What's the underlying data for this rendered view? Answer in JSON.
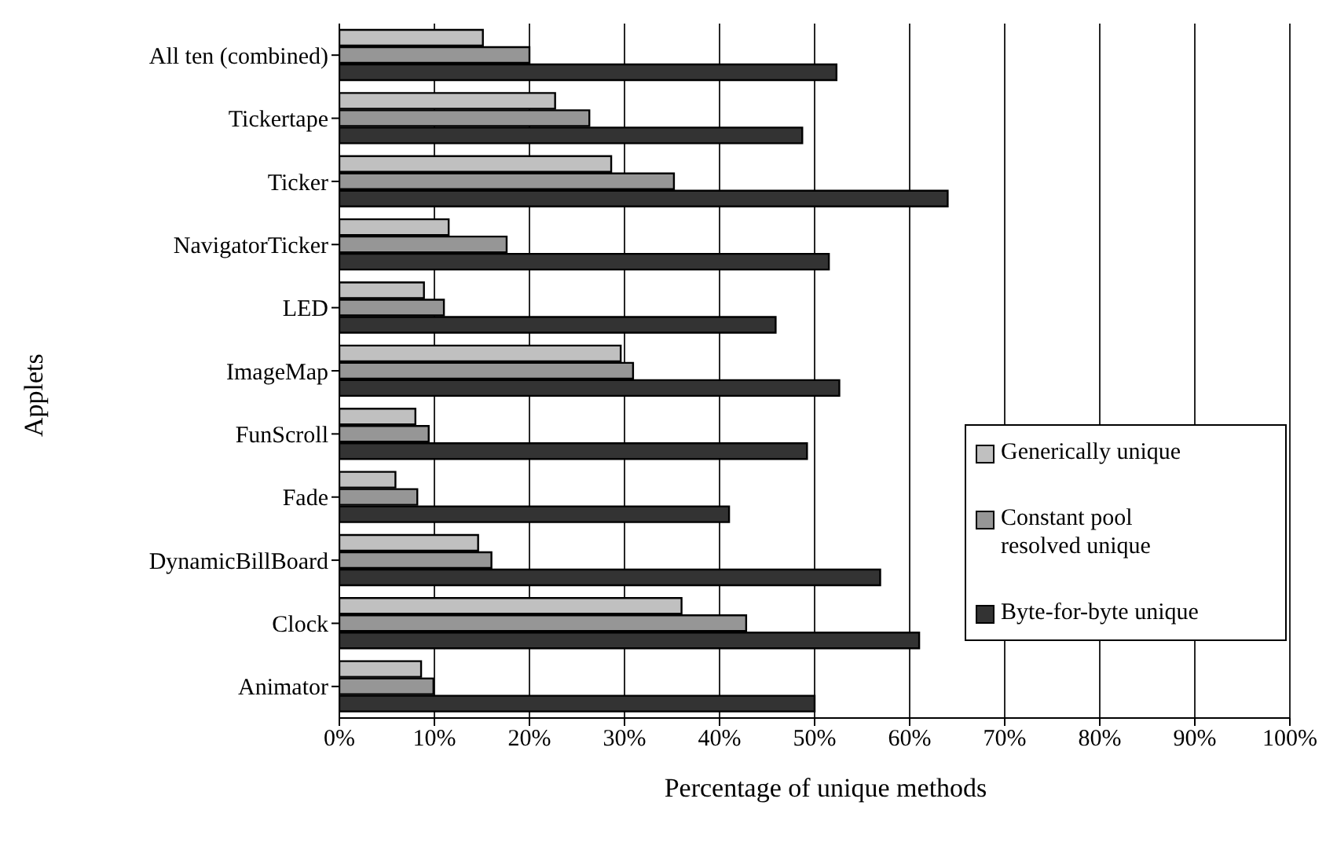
{
  "chart_data": {
    "type": "bar",
    "orientation": "horizontal",
    "xlabel": "Percentage of unique methods",
    "ylabel": "Applets",
    "categories": [
      "All ten (combined)",
      "Tickertape",
      "Ticker",
      "NavigatorTicker",
      "LED",
      "ImageMap",
      "FunScroll",
      "Fade",
      "DynamicBillBoard",
      "Clock",
      "Animator"
    ],
    "series": [
      {
        "name": "Generically unique",
        "color": "#c0c0c0",
        "values": [
          15.1,
          22.7,
          28.6,
          11.5,
          8.9,
          29.6,
          8,
          5.9,
          14.6,
          36,
          8.6
        ]
      },
      {
        "name": "Constant pool resolved unique",
        "color": "#969696",
        "values": [
          20,
          26.3,
          35.2,
          17.6,
          11,
          30.9,
          9.4,
          8.2,
          16,
          42.8,
          9.9
        ]
      },
      {
        "name": "Byte-for-byte unique",
        "color": "#333333",
        "values": [
          52.3,
          48.7,
          64,
          51.5,
          45.9,
          52.6,
          49.2,
          41,
          56.9,
          61,
          50
        ]
      }
    ],
    "xlim": [
      0,
      100
    ],
    "xticks": [
      {
        "value": 0,
        "label": "0%"
      },
      {
        "value": 10,
        "label": "10%"
      },
      {
        "value": 20,
        "label": "20%"
      },
      {
        "value": 30,
        "label": "30%"
      },
      {
        "value": 40,
        "label": "40%"
      },
      {
        "value": 50,
        "label": "50%"
      },
      {
        "value": 60,
        "label": "60%"
      },
      {
        "value": 70,
        "label": "70%"
      },
      {
        "value": 80,
        "label": "80%"
      },
      {
        "value": 90,
        "label": "90%"
      },
      {
        "value": 100,
        "label": "100%"
      }
    ],
    "grid": "x",
    "legend": "bottom right"
  }
}
